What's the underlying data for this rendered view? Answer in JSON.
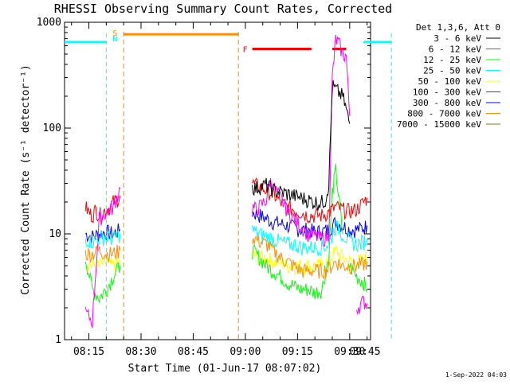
{
  "chart_data": {
    "type": "line",
    "title": "RHESSI Observing Summary Count Rates, Corrected",
    "xlabel": "Start Time (01-Jun-17 08:07:02)",
    "ylabel": "Corrected Count Rate (s⁻¹ detector⁻¹)",
    "yscale": "log",
    "ylim": [
      1,
      1000
    ],
    "xlim_minutes": [
      8.0,
      96.0
    ],
    "y_ticks": [
      {
        "value": 1,
        "label": "1"
      },
      {
        "value": 10,
        "label": "10"
      },
      {
        "value": 100,
        "label": "100"
      },
      {
        "value": 1000,
        "label": "1000"
      }
    ],
    "x_ticks": [
      {
        "label": "08:15",
        "min": 15
      },
      {
        "label": "08:30",
        "min": 30
      },
      {
        "label": "08:45",
        "min": 45
      },
      {
        "label": "09:00",
        "min": 60
      },
      {
        "label": "09:15",
        "min": 75
      },
      {
        "label": "09:30",
        "min": 90
      },
      {
        "label": "09:45",
        "min": 105
      }
    ],
    "legend_title": "Det 1,3,6, Att 0",
    "legend_position": "right",
    "grid": false,
    "footer": "1-Sep-2022 04:03",
    "series": [
      {
        "name": "3 - 6 keV",
        "color": "#000000",
        "segments": [
          {
            "x": [
              62,
              63,
              64,
              66,
              68,
              70,
              72,
              74,
              76,
              78,
              80,
              82,
              83,
              84,
              85,
              86,
              88,
              89,
              90
            ],
            "y": [
              28,
              27,
              28,
              29,
              26,
              25,
              24,
              23,
              22,
              21,
              20,
              20,
              21,
              30,
              250,
              230,
              200,
              150,
              110
            ]
          }
        ]
      },
      {
        "name": "6 - 12 keV",
        "color": "#ff00ff",
        "segments": [
          {
            "x": [
              14,
              16,
              18,
              20,
              22,
              23,
              24
            ],
            "y": [
              1.8,
              1.5,
              14,
              16,
              18,
              22,
              27
            ]
          },
          {
            "x": [
              62,
              63,
              64,
              66,
              67,
              68,
              70,
              72,
              74,
              76,
              78,
              80,
              82,
              84,
              85,
              86,
              87,
              88,
              89,
              90
            ],
            "y": [
              18,
              17,
              18,
              21,
              32,
              28,
              22,
              17,
              14,
              12,
              10,
              9.5,
              9,
              9.5,
              300,
              700,
              620,
              500,
              480,
              130
            ]
          },
          {
            "x": [
              92,
              94,
              95
            ],
            "y": [
              2.0,
              2.3,
              2.2
            ]
          }
        ]
      },
      {
        "name": "12 - 25 keV",
        "color": "#00ff00",
        "segments": [
          {
            "x": [
              14,
              16,
              18,
              20,
              22,
              24
            ],
            "y": [
              6,
              3,
              2.5,
              3,
              4,
              5
            ]
          },
          {
            "x": [
              62,
              64,
              66,
              68,
              70,
              72,
              74,
              76,
              78,
              80,
              82,
              84,
              85,
              86,
              87,
              88
            ],
            "y": [
              7,
              6,
              5,
              4.5,
              4,
              3.5,
              3.2,
              3,
              3,
              2.8,
              3,
              6,
              25,
              40,
              20,
              10
            ]
          },
          {
            "x": [
              90,
              92,
              94,
              95
            ],
            "y": [
              5,
              4,
              3.5,
              3
            ]
          }
        ]
      },
      {
        "name": "25 - 50 keV",
        "color": "#00ffff",
        "segments": [
          {
            "x": [
              14,
              16,
              18,
              20,
              22,
              24
            ],
            "y": [
              9,
              8.5,
              9,
              9.5,
              9,
              10
            ]
          },
          {
            "x": [
              62,
              64,
              66,
              68,
              70,
              72,
              74,
              76,
              78,
              80,
              82,
              84,
              86,
              88,
              90,
              92,
              94,
              95
            ],
            "y": [
              11,
              10,
              9.5,
              9,
              8.5,
              8,
              8,
              7.5,
              7.5,
              7.5,
              7.5,
              8,
              12,
              10,
              8.5,
              8,
              8.5,
              9
            ]
          }
        ]
      },
      {
        "name": "50 - 100 keV",
        "color": "#ffff00",
        "segments": [
          {
            "x": [
              14,
              16,
              18,
              20,
              22,
              24
            ],
            "y": [
              5.5,
              5,
              5,
              5.5,
              5,
              5.5
            ]
          },
          {
            "x": [
              62,
              64,
              66,
              68,
              70,
              72,
              74,
              76,
              78,
              80,
              82,
              84,
              86,
              88,
              90,
              92,
              94,
              95
            ],
            "y": [
              6.5,
              6,
              6,
              5.5,
              5.5,
              5,
              5,
              5,
              5,
              5,
              5,
              5.5,
              7,
              6,
              5.5,
              5.5,
              5.5,
              6
            ]
          }
        ]
      },
      {
        "name": "100 - 300 keV",
        "color": "#ff0000",
        "segments": [
          {
            "x": [
              14,
              15,
              16,
              17,
              18,
              19,
              20,
              21,
              22,
              23,
              24
            ],
            "y": [
              18,
              16,
              15,
              17,
              15,
              16,
              17,
              18,
              20,
              21,
              23
            ]
          },
          {
            "x": [
              62,
              64,
              66,
              68,
              70,
              72,
              74,
              76,
              78,
              80,
              82,
              84,
              86,
              88,
              90,
              92,
              94,
              95
            ],
            "y": [
              30,
              28,
              26,
              24,
              20,
              18,
              17,
              16,
              15,
              15,
              15,
              16,
              18,
              17,
              16.5,
              17,
              20,
              22
            ]
          }
        ]
      },
      {
        "name": "300 - 800 keV",
        "color": "#0000ff",
        "segments": [
          {
            "x": [
              14,
              16,
              18,
              20,
              22,
              24
            ],
            "y": [
              10,
              9.5,
              10,
              10.5,
              10,
              11
            ]
          },
          {
            "x": [
              62,
              64,
              66,
              68,
              70,
              72,
              74,
              76,
              78,
              80,
              82,
              84,
              86,
              88,
              90,
              92,
              94,
              95
            ],
            "y": [
              16,
              15,
              14,
              13,
              12.5,
              12,
              11.5,
              11,
              11,
              10.5,
              10.5,
              11,
              13,
              12,
              11,
              11,
              11.5,
              12
            ]
          }
        ]
      },
      {
        "name": "800 - 7000 keV",
        "color": "#ff8c00",
        "segments": [
          {
            "x": [
              14,
              16,
              18,
              20,
              22,
              24
            ],
            "y": [
              6.5,
              6.5,
              7,
              6.5,
              6.5,
              7
            ]
          },
          {
            "x": [
              62,
              64,
              66,
              68,
              70,
              72,
              74,
              76,
              78,
              80,
              82,
              84,
              86,
              88,
              90,
              92,
              94,
              95
            ],
            "y": [
              9.5,
              8.5,
              8,
              7,
              6,
              5.5,
              5,
              4.5,
              4.5,
              4.5,
              4.5,
              4.7,
              5.5,
              5,
              5,
              5,
              5.2,
              5.5
            ]
          }
        ]
      },
      {
        "name": "7000 - 15000 keV",
        "color": "#808000",
        "segments": []
      }
    ],
    "markers": {
      "saa_label": "S",
      "night_label": "N",
      "flare_label": "F",
      "saa_color": "#00ffff",
      "night_color": "#ff8c00",
      "flare_color": "#ff0000",
      "saa_lines_min": [
        20,
        102
      ],
      "night_lines_min": [
        25,
        58
      ],
      "saa_bars": [
        {
          "from": 8,
          "to": 20
        },
        {
          "from": 94,
          "to": 102
        }
      ],
      "night_bars": [
        {
          "from": 25,
          "to": 58
        }
      ],
      "flare_bars": [
        {
          "from": 62,
          "to": 79
        },
        {
          "from": 85,
          "to": 89
        }
      ],
      "saa_bar_y": 650,
      "night_bar_y": 770,
      "flare_bar_y": 560
    }
  }
}
